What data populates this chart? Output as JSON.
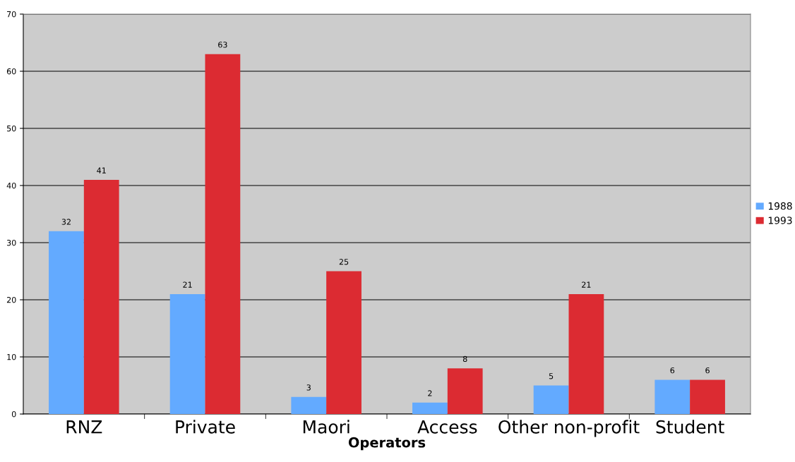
{
  "chart_data": {
    "type": "bar",
    "xlabel": "Operators",
    "categories": [
      "RNZ",
      "Private",
      "Maori",
      "Access",
      "Other non-profit",
      "Student"
    ],
    "series": [
      {
        "name": "1988",
        "color": "#63aaff",
        "values": [
          32,
          21,
          3,
          2,
          5,
          6
        ]
      },
      {
        "name": "1993",
        "color": "#dc2b32",
        "values": [
          41,
          63,
          25,
          8,
          21,
          6
        ]
      }
    ],
    "ylim": [
      0,
      70
    ],
    "yticks": [
      0,
      10,
      20,
      30,
      40,
      50,
      60,
      70
    ],
    "grid": "y",
    "legend": "right",
    "data_labels": true
  }
}
